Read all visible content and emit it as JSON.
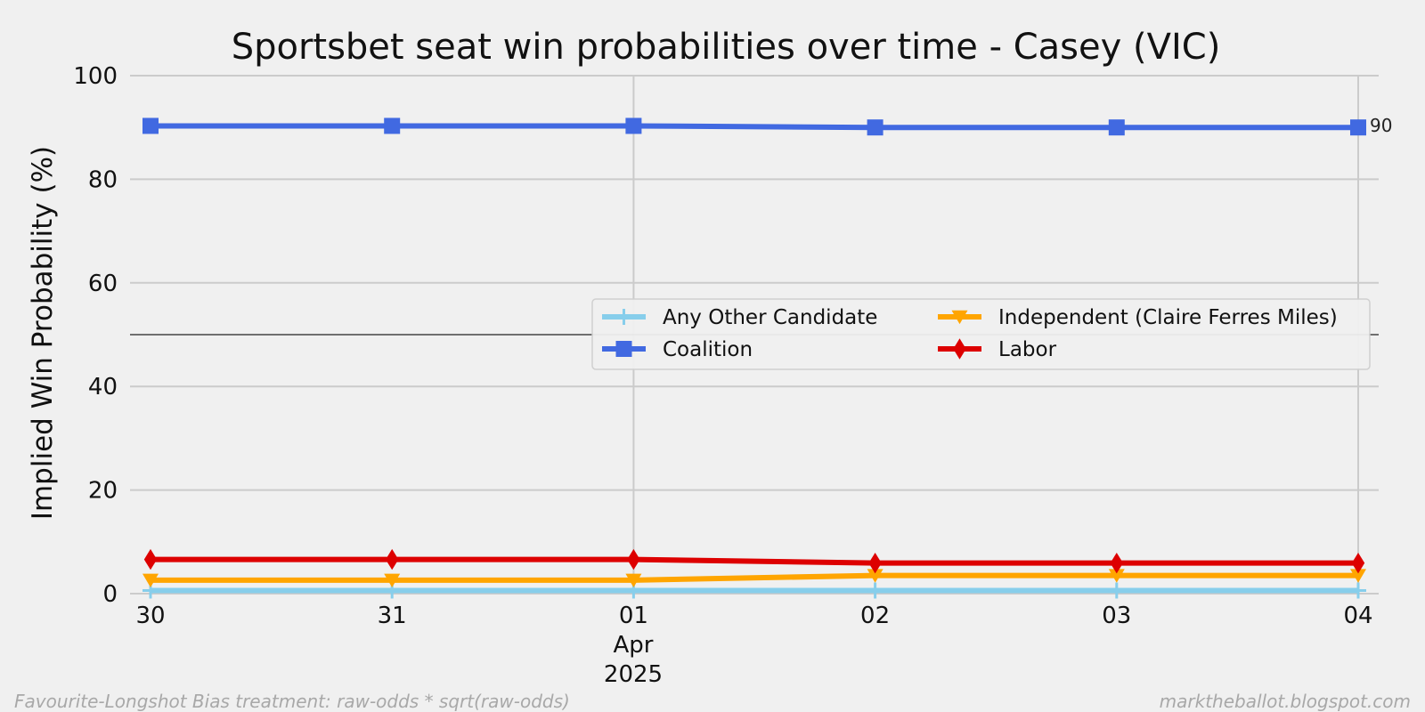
{
  "chart_data": {
    "type": "line",
    "title": "Sportsbet seat win probabilities over time - Casey (VIC)",
    "xlabel": "",
    "ylabel": "Implied Win Probability (%)",
    "x": [
      "2025-03-30",
      "2025-03-31",
      "2025-04-01",
      "2025-04-02",
      "2025-04-03",
      "2025-04-04"
    ],
    "x_tick_labels": [
      "30",
      "31",
      "01",
      "02",
      "03",
      "04"
    ],
    "x_month_label": "Apr",
    "x_year_label": "2025",
    "y_ticks": [
      "0",
      "20",
      "40",
      "60",
      "80",
      "100"
    ],
    "ylim": [
      0,
      100
    ],
    "reference_line": 50,
    "grid": true,
    "legend_placement": "center-right",
    "series": [
      {
        "name": "Any Other Candidate",
        "color": "#87ceeb",
        "marker": "plus",
        "values": [
          0.6,
          0.6,
          0.6,
          0.6,
          0.6,
          0.6
        ]
      },
      {
        "name": "Independent (Claire Ferres Miles)",
        "color": "#ffa500",
        "marker": "triangle-down",
        "values": [
          2.6,
          2.6,
          2.6,
          3.5,
          3.5,
          3.5
        ]
      },
      {
        "name": "Coalition",
        "color": "#4169e1",
        "marker": "square",
        "values": [
          90.3,
          90.3,
          90.3,
          90.0,
          90.0,
          90.0
        ]
      },
      {
        "name": "Labor",
        "color": "#dd0000",
        "marker": "diamond",
        "values": [
          6.6,
          6.6,
          6.6,
          5.9,
          5.9,
          5.9
        ]
      }
    ],
    "end_label": "90"
  },
  "footer": {
    "left": "Favourite-Longshot Bias treatment: raw-odds * sqrt(raw-odds)",
    "right": "marktheballot.blogspot.com"
  }
}
